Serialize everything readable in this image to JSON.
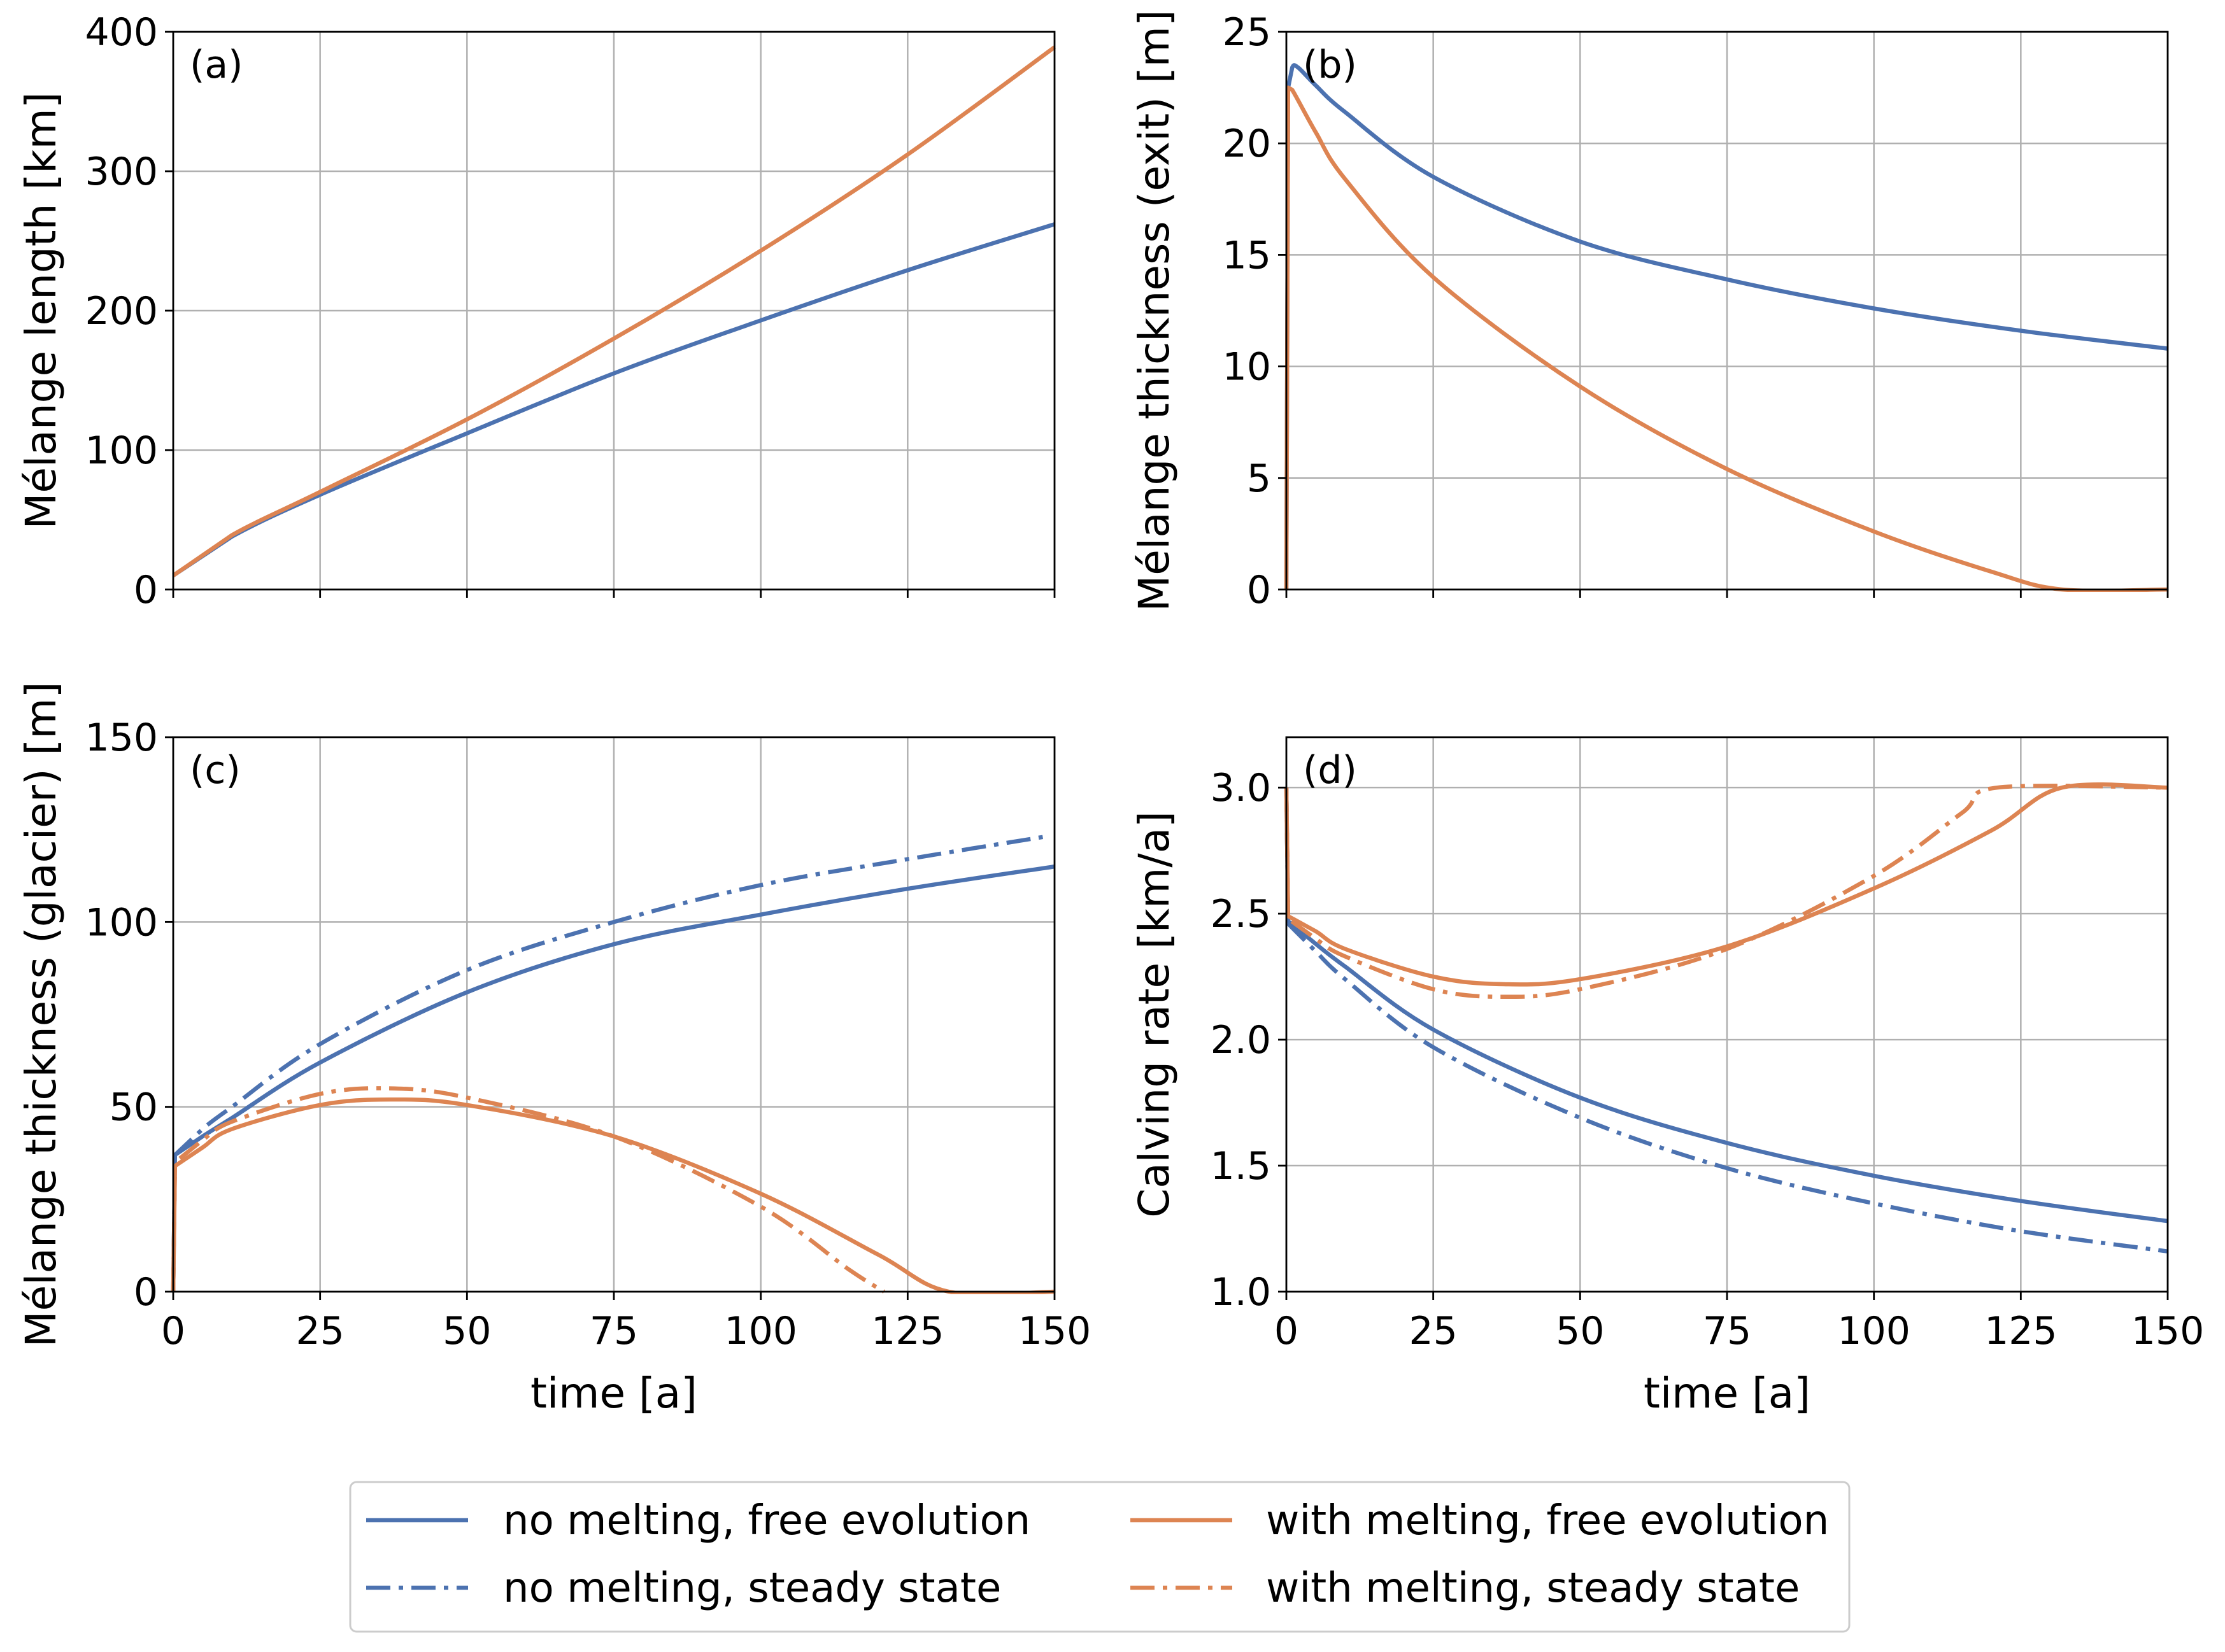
{
  "figure": {
    "colors": {
      "no_melting": "#4c72b0",
      "with_melting": "#dd8452"
    },
    "legend": {
      "entries": [
        {
          "label": "no melting, free evolution",
          "color": "#4c72b0",
          "style": "solid"
        },
        {
          "label": "no melting, steady state",
          "color": "#4c72b0",
          "style": "dashdot"
        },
        {
          "label": "with melting, free evolution",
          "color": "#dd8452",
          "style": "solid"
        },
        {
          "label": "with melting, steady state",
          "color": "#dd8452",
          "style": "dashdot"
        }
      ]
    }
  },
  "chart_data": [
    {
      "type": "line",
      "panel_label": "(a)",
      "xlabel": "",
      "ylabel": "Mélange length [km]",
      "xlim": [
        0,
        150
      ],
      "ylim": [
        0,
        400
      ],
      "xticks": [
        0,
        25,
        50,
        75,
        100,
        125,
        150
      ],
      "xtick_labels_visible": false,
      "yticks": [
        0,
        100,
        200,
        300,
        400
      ],
      "grid": true,
      "series": [
        {
          "name": "no melting, free evolution",
          "color": "#4c72b0",
          "style": "solid",
          "x": [
            0,
            10,
            25,
            50,
            75,
            100,
            125,
            150
          ],
          "y": [
            10,
            38,
            68,
            112,
            155,
            193,
            229,
            262
          ]
        },
        {
          "name": "with melting, free evolution",
          "color": "#dd8452",
          "style": "solid",
          "x": [
            0,
            10,
            25,
            50,
            75,
            100,
            125,
            150
          ],
          "y": [
            10,
            39,
            70,
            122,
            180,
            243,
            312,
            389
          ]
        }
      ]
    },
    {
      "type": "line",
      "panel_label": "(b)",
      "xlabel": "",
      "ylabel": "Mélange thickness (exit) [m]",
      "xlim": [
        0,
        150
      ],
      "ylim": [
        0,
        25
      ],
      "xticks": [
        0,
        25,
        50,
        75,
        100,
        125,
        150
      ],
      "xtick_labels_visible": false,
      "yticks": [
        0,
        5,
        10,
        15,
        20,
        25
      ],
      "grid": true,
      "series": [
        {
          "name": "no melting, free evolution",
          "color": "#4c72b0",
          "style": "solid",
          "x": [
            0,
            0.3,
            1,
            2,
            5,
            10,
            25,
            50,
            75,
            100,
            125,
            150
          ],
          "y": [
            0,
            22.5,
            23.4,
            23.4,
            22.6,
            21.4,
            18.5,
            15.6,
            13.9,
            12.6,
            11.6,
            10.8
          ]
        },
        {
          "name": "with melting, free evolution",
          "color": "#dd8452",
          "style": "solid",
          "x": [
            0,
            0.3,
            1,
            5,
            10,
            25,
            50,
            75,
            100,
            120,
            132,
            150
          ],
          "y": [
            0,
            22.5,
            22.4,
            20.5,
            18.4,
            14.0,
            9.1,
            5.4,
            2.6,
            0.8,
            0,
            0
          ]
        }
      ]
    },
    {
      "type": "line",
      "panel_label": "(c)",
      "xlabel": "time [a]",
      "ylabel": "Mélange thickness (glacier) [m]",
      "xlim": [
        0,
        150
      ],
      "ylim": [
        0,
        150
      ],
      "xticks": [
        0,
        25,
        50,
        75,
        100,
        125,
        150
      ],
      "yticks": [
        0,
        50,
        100,
        150
      ],
      "grid": true,
      "series": [
        {
          "name": "no melting, free evolution",
          "color": "#4c72b0",
          "style": "solid",
          "x": [
            0,
            0.3,
            5,
            10,
            25,
            50,
            75,
            100,
            125,
            150
          ],
          "y": [
            0,
            37,
            42,
            47,
            62,
            81,
            94,
            102,
            109,
            115
          ]
        },
        {
          "name": "no melting, steady state",
          "color": "#4c72b0",
          "style": "dashdot",
          "x": [
            0,
            0.3,
            5,
            10,
            25,
            50,
            75,
            100,
            125,
            148
          ],
          "y": [
            0,
            37,
            44,
            50,
            67,
            87,
            100,
            110,
            117,
            123
          ]
        },
        {
          "name": "with melting, free evolution",
          "color": "#dd8452",
          "style": "solid",
          "x": [
            0,
            0.3,
            5,
            10,
            25,
            37,
            50,
            75,
            100,
            120,
            132,
            150
          ],
          "y": [
            0,
            34,
            39,
            44,
            50.5,
            52,
            50.5,
            42,
            26.5,
            10,
            0,
            0
          ]
        },
        {
          "name": "with melting, steady state",
          "color": "#dd8452",
          "style": "dashdot",
          "x": [
            0,
            0.3,
            5,
            10,
            25,
            37,
            50,
            75,
            100,
            115,
            121
          ],
          "y": [
            0,
            35,
            41,
            46,
            53.5,
            55,
            52.5,
            42,
            23,
            6,
            0
          ]
        }
      ]
    },
    {
      "type": "line",
      "panel_label": "(d)",
      "xlabel": "time [a]",
      "ylabel": "Calving rate [km/a]",
      "xlim": [
        0,
        150
      ],
      "ylim": [
        1.0,
        3.2
      ],
      "xticks": [
        0,
        25,
        50,
        75,
        100,
        125,
        150
      ],
      "yticks": [
        1.0,
        1.5,
        2.0,
        2.5,
        3.0
      ],
      "grid": true,
      "series": [
        {
          "name": "no melting, free evolution",
          "color": "#4c72b0",
          "style": "solid",
          "x": [
            0,
            0.3,
            5,
            10,
            25,
            50,
            75,
            100,
            125,
            150
          ],
          "y": [
            3.0,
            2.47,
            2.38,
            2.29,
            2.04,
            1.77,
            1.59,
            1.46,
            1.36,
            1.28
          ]
        },
        {
          "name": "no melting, steady state",
          "color": "#4c72b0",
          "style": "dashdot",
          "x": [
            0,
            0.3,
            5,
            10,
            25,
            50,
            75,
            100,
            125,
            150
          ],
          "y": [
            3.0,
            2.46,
            2.35,
            2.24,
            1.97,
            1.69,
            1.49,
            1.35,
            1.24,
            1.16
          ]
        },
        {
          "name": "with melting, free evolution",
          "color": "#dd8452",
          "style": "solid",
          "x": [
            0,
            0.3,
            5,
            10,
            25,
            37,
            50,
            75,
            100,
            120,
            132,
            150
          ],
          "y": [
            3.0,
            2.49,
            2.43,
            2.36,
            2.25,
            2.22,
            2.24,
            2.37,
            2.6,
            2.83,
            3.0,
            3.0
          ]
        },
        {
          "name": "with melting, steady state",
          "color": "#dd8452",
          "style": "dashdot",
          "x": [
            0,
            0.3,
            5,
            10,
            25,
            37,
            50,
            75,
            100,
            115,
            121,
            150
          ],
          "y": [
            3.0,
            2.48,
            2.4,
            2.33,
            2.2,
            2.17,
            2.2,
            2.36,
            2.65,
            2.9,
            3.0,
            3.0
          ]
        }
      ]
    }
  ]
}
